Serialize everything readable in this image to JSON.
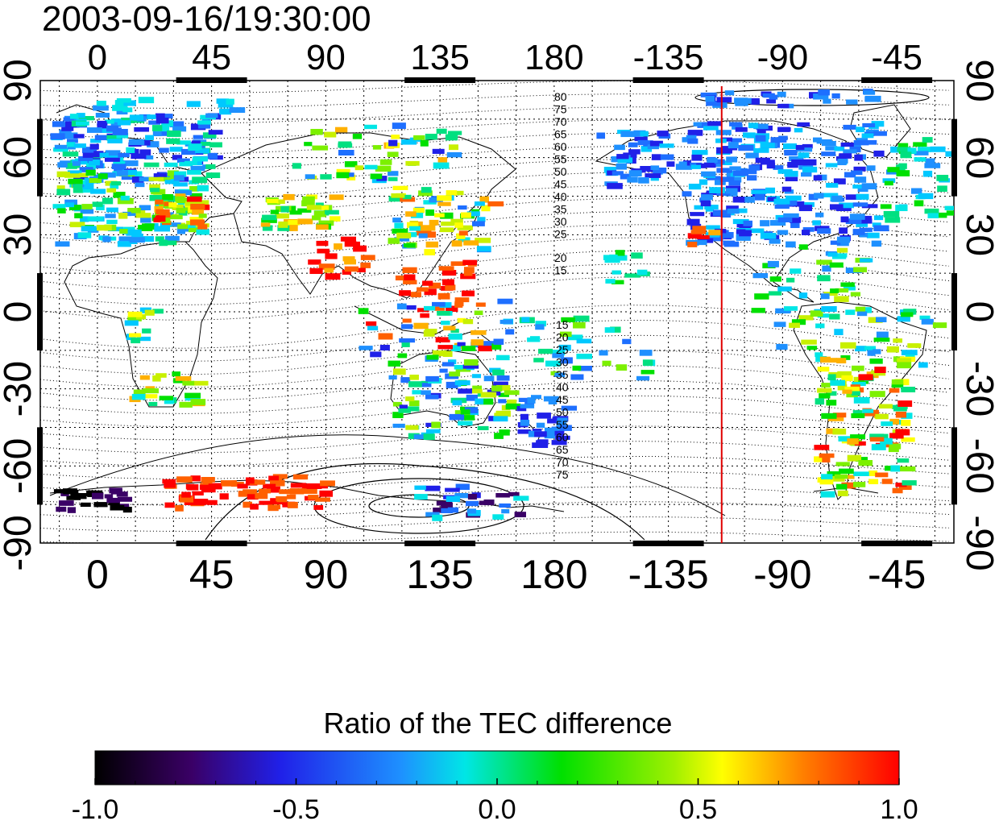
{
  "map": {
    "timestamp": "2003-09-16/19:30:00",
    "lon_ticks": [
      "0",
      "45",
      "90",
      "135",
      "180",
      "-135",
      "-90",
      "-45"
    ],
    "lat_ticks": [
      "90",
      "60",
      "30",
      "0",
      "-30",
      "-60",
      "-90"
    ],
    "contour_labels_north": [
      "80",
      "75",
      "70",
      "65",
      "60",
      "55",
      "50",
      "45",
      "40",
      "35",
      "30",
      "25",
      "20",
      "15"
    ],
    "contour_labels_south": [
      "15",
      "20",
      "25",
      "30",
      "35",
      "40",
      "45",
      "50",
      "55",
      "60",
      "65",
      "70",
      "75"
    ],
    "marker_line_longitude": -114,
    "marker_line_color": "#e00000"
  },
  "colorbar": {
    "title": "Ratio of the TEC difference",
    "tick_labels": [
      "-1.0",
      "-0.5",
      "0.0",
      "0.5",
      "1.0"
    ],
    "min": -1.0,
    "max": 1.0
  },
  "icons": [
    "coastline-outline",
    "geomagnetic-contours"
  ]
}
